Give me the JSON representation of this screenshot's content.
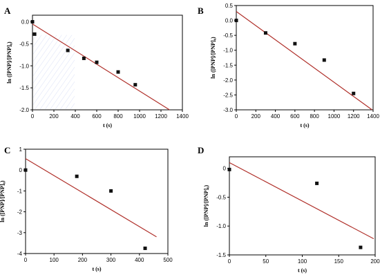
{
  "chart_data": [
    {
      "panel": "A",
      "type": "scatter",
      "xlabel": "t (s)",
      "ylabel": "ln ([PNP]/[PNP]₀)",
      "xlim": [
        0,
        1400
      ],
      "ylim": [
        -2.0,
        0.15
      ],
      "xticks": [
        0,
        200,
        400,
        600,
        800,
        1000,
        1200,
        1400
      ],
      "xtick_labels": [
        "0",
        "200",
        "400",
        "600",
        "800",
        "1000",
        "1200",
        "1400"
      ],
      "yticks": [
        0.0,
        -0.5,
        -1.0,
        -1.5,
        -2.0
      ],
      "ytick_labels": [
        "0.0",
        "-0.5",
        "-1.0",
        "-1.5",
        "-2.0"
      ],
      "points": {
        "x": [
          0,
          20,
          330,
          480,
          600,
          800,
          960
        ],
        "y": [
          0.0,
          -0.28,
          -0.65,
          -0.83,
          -0.92,
          -1.14,
          -1.43
        ]
      },
      "fit_line": {
        "x": [
          0,
          1280
        ],
        "y": [
          -0.05,
          -2.0
        ]
      },
      "grid": false
    },
    {
      "panel": "B",
      "type": "scatter",
      "xlabel": "t (s)",
      "ylabel": "ln ([PNP]/[PNP]₀)",
      "xlim": [
        0,
        1400
      ],
      "ylim": [
        -3.0,
        0.5
      ],
      "xticks": [
        0,
        200,
        400,
        600,
        800,
        1000,
        1200,
        1400
      ],
      "xtick_labels": [
        "0",
        "200",
        "400",
        "600",
        "800",
        "1000",
        "1200",
        "1400"
      ],
      "yticks": [
        0.5,
        0.0,
        -0.5,
        -1.0,
        -1.5,
        -2.0,
        -2.5,
        -3.0
      ],
      "ytick_labels": [
        "0.5",
        "0.0",
        "-0.5",
        "-1.0",
        "-1.5",
        "-2.0",
        "-2.5",
        "-3.0"
      ],
      "points": {
        "x": [
          0,
          300,
          600,
          900,
          1200
        ],
        "y": [
          0.0,
          -0.42,
          -0.78,
          -1.33,
          -2.45
        ]
      },
      "fit_line": {
        "x": [
          0,
          1390
        ],
        "y": [
          0.3,
          -3.0
        ]
      },
      "grid": false
    },
    {
      "panel": "C",
      "type": "scatter",
      "xlabel": "t (s)",
      "ylabel": "ln ([PNP]/[PNP]₀)",
      "xlim": [
        0,
        500
      ],
      "ylim": [
        -4,
        1
      ],
      "xticks": [
        0,
        100,
        200,
        300,
        400,
        500
      ],
      "xtick_labels": [
        "0",
        "100",
        "200",
        "300",
        "400",
        "500"
      ],
      "yticks": [
        1,
        0,
        -1,
        -2,
        -3,
        -4
      ],
      "ytick_labels": [
        "1",
        "0",
        "-1",
        "-2",
        "-3",
        "-4"
      ],
      "points": {
        "x": [
          0,
          180,
          300,
          420
        ],
        "y": [
          0.0,
          -0.3,
          -1.0,
          -3.75
        ]
      },
      "fit_line": {
        "x": [
          0,
          460
        ],
        "y": [
          0.55,
          -3.2
        ]
      },
      "grid": false
    },
    {
      "panel": "D",
      "type": "scatter",
      "xlabel": "t (s)",
      "ylabel": "ln ([PNP]/[PNP]₀)",
      "xlim": [
        0,
        200
      ],
      "ylim": [
        -1.5,
        0.2
      ],
      "xticks": [
        0,
        50,
        100,
        150,
        200
      ],
      "xtick_labels": [
        "0",
        "50",
        "100",
        "150",
        "200"
      ],
      "yticks": [
        0.0,
        -0.5,
        -1.0,
        -1.5
      ],
      "ytick_labels": [
        "0",
        "-0.5",
        "-1.0",
        "-1.5"
      ],
      "points": {
        "x": [
          0,
          120,
          180
        ],
        "y": [
          -0.02,
          -0.26,
          -1.37
        ]
      },
      "fit_line": {
        "x": [
          0,
          198
        ],
        "y": [
          0.1,
          -1.22
        ]
      },
      "grid": false
    }
  ],
  "colors": {
    "fit_line": "#b0302a",
    "points": "#111111",
    "axes": "#000000",
    "hatch": "#4a6ad0"
  }
}
